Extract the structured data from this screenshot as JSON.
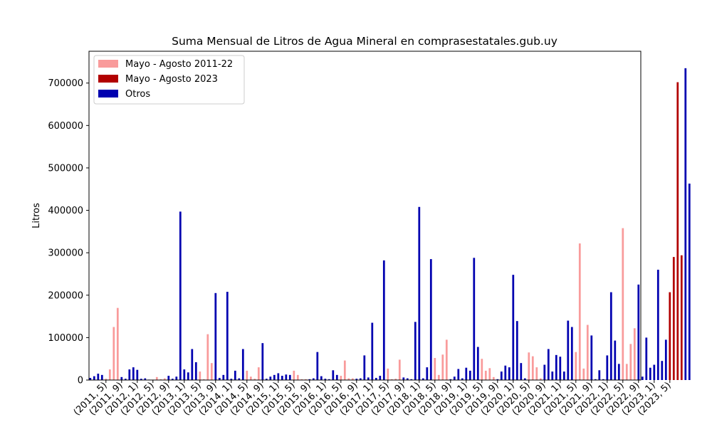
{
  "chart_data": {
    "type": "bar",
    "title": "Suma Mensual de Litros de Agua Mineral en comprasestatales.gub.uy",
    "xlabel": "",
    "ylabel": "Litros",
    "ylim": [
      0,
      775000
    ],
    "yticks": [
      0,
      100000,
      200000,
      300000,
      400000,
      500000,
      600000,
      700000
    ],
    "ytick_labels": [
      "0",
      "100000",
      "200000",
      "300000",
      "400000",
      "500000",
      "600000",
      "700000"
    ],
    "grid": false,
    "legend_position": "top-left",
    "legend": [
      {
        "key": "mayo_agosto_2011_22",
        "label": "Mayo - Agosto 2011-22",
        "color": "#f99b9b"
      },
      {
        "key": "mayo_agosto_2023",
        "label": "Mayo - Agosto 2023",
        "color": "#b20000"
      },
      {
        "key": "otros",
        "label": "Otros",
        "color": "#0000b0"
      }
    ],
    "series_colors": {
      "p": "#f99b9b",
      "r": "#b20000",
      "b": "#0000b0"
    },
    "months": {
      "start_year": 2011,
      "start_month": 1,
      "values": [
        5000,
        9000,
        15000,
        12000,
        3000,
        25000,
        125000,
        170000,
        7000,
        3000,
        25000,
        30000,
        24000,
        3000,
        4000,
        1000,
        1000,
        7000,
        2000,
        4000,
        10000,
        3000,
        8000,
        397000,
        25000,
        18000,
        73000,
        42000,
        20000,
        2000,
        108000,
        40000,
        205000,
        5000,
        12000,
        208000,
        3000,
        22000,
        4000,
        73000,
        22000,
        8000,
        3000,
        30000,
        87000,
        3000,
        8000,
        12000,
        16000,
        10000,
        13000,
        12000,
        22000,
        12000,
        2000,
        2000,
        2000,
        4000,
        66000,
        9000,
        3000,
        2000,
        23000,
        12000,
        10000,
        46000,
        4000,
        4000,
        3000,
        4000,
        58000,
        6000,
        135000,
        5000,
        10000,
        282000,
        27000,
        2000,
        3000,
        48000,
        6000,
        4000,
        2000,
        137000,
        408000,
        4000,
        30000,
        285000,
        52000,
        12000,
        60000,
        95000,
        2000,
        8000,
        26000,
        4000,
        29000,
        22000,
        288000,
        78000,
        50000,
        22000,
        28000,
        7000,
        2000,
        20000,
        34000,
        30000,
        248000,
        139000,
        40000,
        4000,
        65000,
        56000,
        30000,
        4000,
        36000,
        73000,
        20000,
        59000,
        55000,
        20000,
        140000,
        125000,
        66000,
        322000,
        27000,
        130000,
        105000,
        2000,
        23000,
        2000,
        58000,
        207000,
        93000,
        38000,
        358000,
        38000,
        85000,
        122000,
        225000,
        8000,
        100000,
        29000,
        36000,
        260000,
        45000,
        95000,
        207000,
        290000,
        702000,
        294000,
        735000,
        463000
      ],
      "kinds": "bbbbppppbbbbbbbbppppbbbbbbbbppppbbbbbbbbppppbbbbbbbbppppbbbbbbbbppppbbbbbbbbppppbbbbbbbbppppbbbbbbbbppppbbbbbbbbppppbbbbbbbbppppbbbbbbbbppppbbbbbbbbrrrr"
    },
    "x_tick_labels": [
      "(2011, 5)",
      "(2011, 9)",
      "(2012, 1)",
      "(2012, 5)",
      "(2012, 9)",
      "(2013, 1)",
      "(2013, 5)",
      "(2013, 9)",
      "(2014, 1)",
      "(2014, 5)",
      "(2014, 9)",
      "(2015, 1)",
      "(2015, 5)",
      "(2015, 9)",
      "(2016, 1)",
      "(2016, 5)",
      "(2016, 9)",
      "(2017, 1)",
      "(2017, 5)",
      "(2017, 9)",
      "(2018, 1)",
      "(2018, 5)",
      "(2018, 9)",
      "(2019, 1)",
      "(2019, 5)",
      "(2019, 9)",
      "(2020, 1)",
      "(2020, 5)",
      "(2020, 9)",
      "(2021, 1)",
      "(2021, 5)",
      "(2021, 9)",
      "(2022, 1)",
      "(2022, 5)",
      "(2022, 9)",
      "(2023, 1)",
      "(2023, 5)"
    ]
  }
}
